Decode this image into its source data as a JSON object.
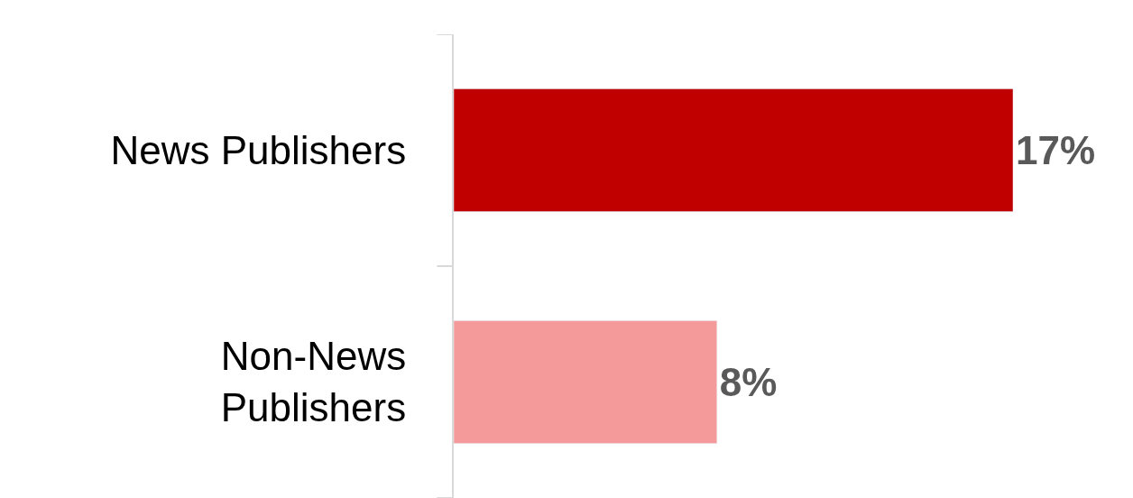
{
  "chart_data": {
    "type": "bar",
    "orientation": "horizontal",
    "categories": [
      "News Publishers",
      "Non-News\nPublishers"
    ],
    "values": [
      17,
      8
    ],
    "colors": [
      "#c00000",
      "#f59a9a"
    ],
    "value_labels": [
      "17%",
      "8%"
    ],
    "legend": false
  }
}
